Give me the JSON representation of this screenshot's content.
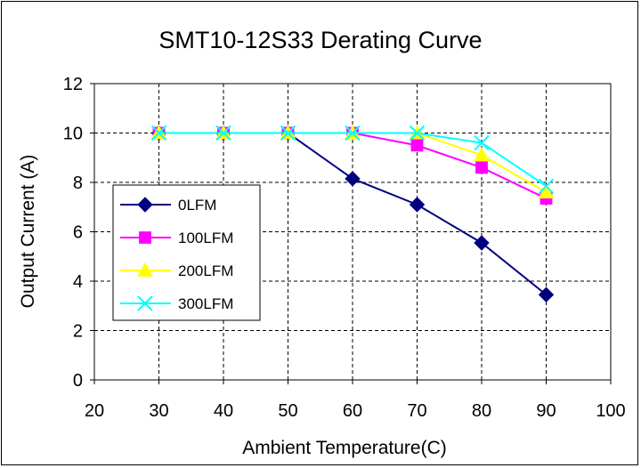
{
  "chart_data": {
    "type": "line",
    "title": "SMT10-12S33 Derating Curve",
    "xlabel": "Ambient Temperature(C)",
    "ylabel": "Output Current (A)",
    "xlim": [
      20,
      100
    ],
    "ylim": [
      0,
      12
    ],
    "x_ticks": [
      "20",
      "30",
      "40",
      "50",
      "60",
      "70",
      "80",
      "90",
      "100"
    ],
    "y_ticks": [
      "0",
      "2",
      "4",
      "6",
      "8",
      "10",
      "12"
    ],
    "grid": "dashed",
    "legend_position": "left",
    "x": [
      30,
      40,
      50,
      60,
      70,
      80,
      90
    ],
    "series": [
      {
        "name": "0LFM",
        "color": "#000080",
        "marker": "diamond",
        "values": [
          10,
          10,
          10,
          8.15,
          7.1,
          5.55,
          3.45
        ]
      },
      {
        "name": "100LFM",
        "color": "#ff00ff",
        "marker": "square",
        "values": [
          10,
          10,
          10,
          10,
          9.5,
          8.6,
          7.35
        ]
      },
      {
        "name": "200LFM",
        "color": "#ffff00",
        "marker": "triangle",
        "values": [
          10,
          10,
          10,
          10,
          10,
          9.1,
          7.6
        ]
      },
      {
        "name": "300LFM",
        "color": "#00ffff",
        "marker": "x",
        "values": [
          10,
          10,
          10,
          10,
          10,
          9.6,
          7.85
        ]
      }
    ]
  }
}
